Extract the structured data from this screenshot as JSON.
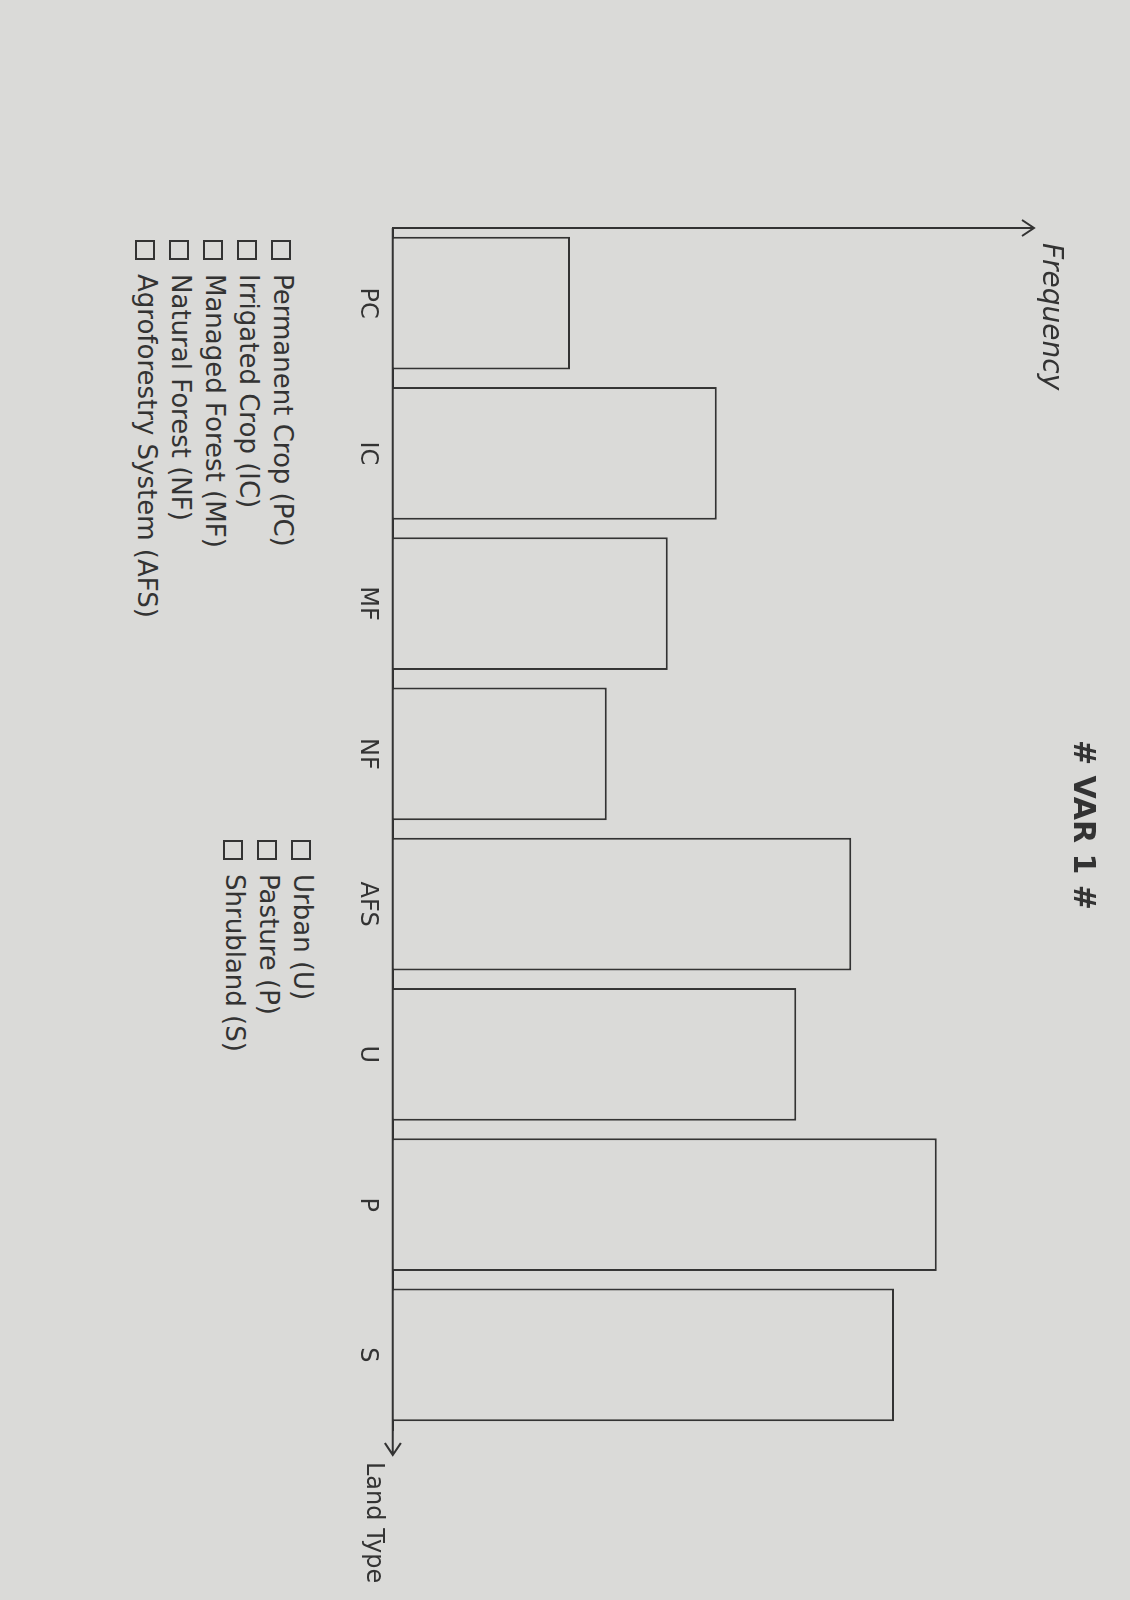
{
  "chart_data": {
    "type": "bar",
    "title": "# VAR 1 #",
    "y_label": "Frequency",
    "x_label": "Land Type",
    "categories": [
      "PC",
      "IC",
      "MF",
      "NF",
      "AFS",
      "U",
      "P",
      "S"
    ],
    "values": [
      2.9,
      5.3,
      4.5,
      3.5,
      7.5,
      6.6,
      8.9,
      8.2
    ],
    "color": "#dadad8",
    "ylim": [
      0,
      10
    ],
    "grid": false,
    "tick_labels": "x",
    "annotations": [
      "Permanent Crop (PC)",
      "Irrigated Crop (IC)",
      "Managed Forest (MF)",
      "Natural Forest (NF)",
      "Agroforestry System (AFS)",
      "Urban (U)",
      "Pasture (P)",
      "Shrubland (S)"
    ]
  }
}
